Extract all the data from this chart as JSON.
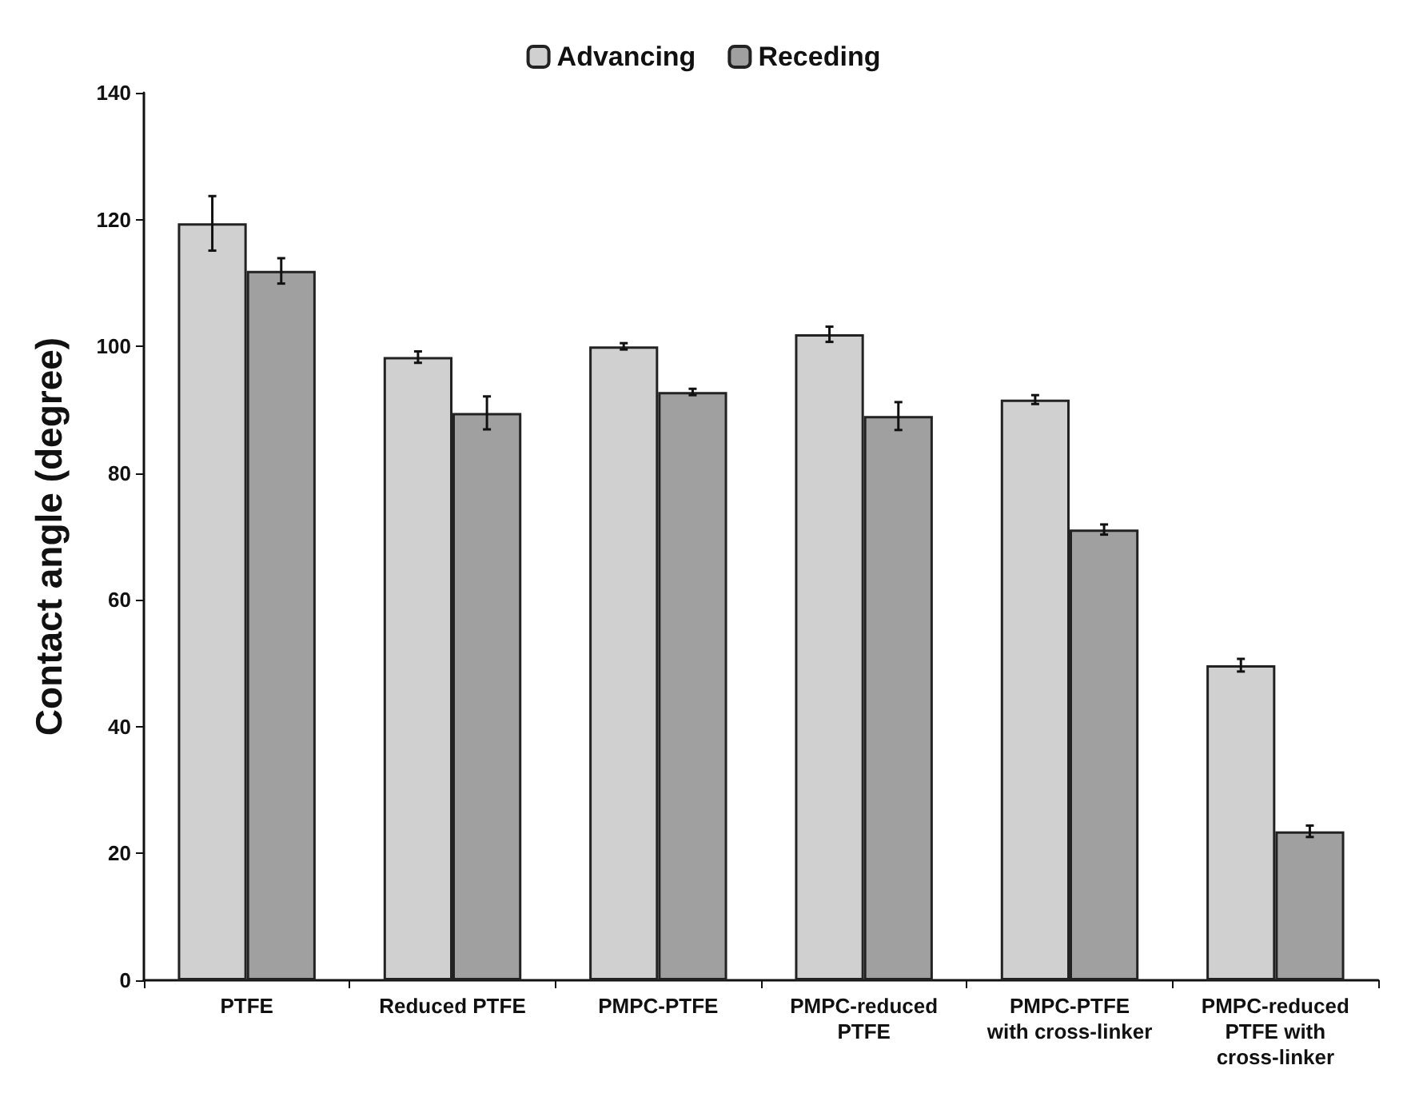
{
  "chart_data": {
    "type": "bar",
    "ylabel": "Contact angle (degree)",
    "categories": [
      "PTFE",
      "Reduced PTFE",
      "PMPC-PTFE",
      "PMPC-reduced\nPTFE",
      "PMPC-PTFE\nwith cross-linker",
      "PMPC-reduced\nPTFE with\ncross-linker"
    ],
    "series": [
      {
        "name": "Advancing",
        "color": "#d0d0d0",
        "values": [
          119.4,
          98.3,
          100,
          101.9,
          91.6,
          49.7
        ],
        "errors": [
          4.3,
          0.9,
          0.5,
          1.2,
          0.7,
          1
        ]
      },
      {
        "name": "Receding",
        "color": "#a0a0a0",
        "values": [
          111.9,
          89.5,
          92.8,
          89,
          71.1,
          23.5
        ],
        "errors": [
          2,
          2.6,
          0.5,
          2.2,
          0.8,
          0.9
        ]
      }
    ],
    "ylim": [
      0,
      140
    ],
    "yticks": [
      0,
      20,
      40,
      60,
      80,
      100,
      120,
      140
    ],
    "grid": false,
    "legend": "top"
  }
}
